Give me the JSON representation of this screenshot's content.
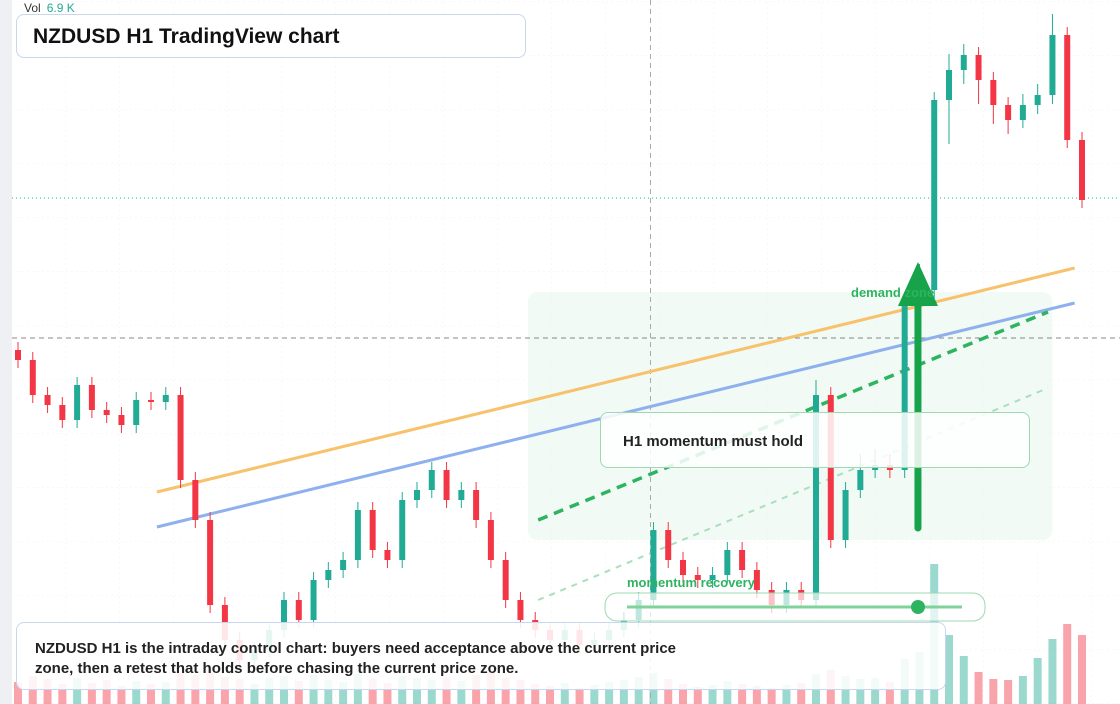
{
  "chart_data": {
    "type": "candlestick",
    "title": "NZDUSD H1 TradingView chart",
    "volume_label": "Vol",
    "volume_readout": "6.9 K",
    "up_color": "#22ab94",
    "down_color": "#f23645",
    "xlim": [
      0,
      72
    ],
    "ylim": [
      0,
      704
    ],
    "volume_lim": [
      0,
      16
    ],
    "candles": [
      [
        354,
        362,
        336,
        344
      ],
      [
        344,
        352,
        301,
        309
      ],
      [
        309,
        317,
        291,
        299
      ],
      [
        299,
        307,
        276,
        284
      ],
      [
        284,
        327,
        276,
        319
      ],
      [
        319,
        327,
        286,
        294
      ],
      [
        294,
        302,
        281,
        289
      ],
      [
        289,
        297,
        271,
        279
      ],
      [
        279,
        312,
        271,
        304
      ],
      [
        304,
        312,
        294,
        302
      ],
      [
        302,
        317,
        294,
        309
      ],
      [
        309,
        317,
        216,
        224
      ],
      [
        224,
        232,
        176,
        184
      ],
      [
        184,
        192,
        91,
        99
      ],
      [
        99,
        107,
        56,
        64
      ],
      [
        64,
        72,
        36,
        44
      ],
      [
        44,
        62,
        36,
        54
      ],
      [
        54,
        82,
        46,
        74
      ],
      [
        74,
        112,
        66,
        104
      ],
      [
        104,
        112,
        76,
        84
      ],
      [
        84,
        132,
        76,
        124
      ],
      [
        124,
        142,
        116,
        134
      ],
      [
        134,
        152,
        126,
        144
      ],
      [
        144,
        202,
        136,
        194
      ],
      [
        194,
        202,
        146,
        154
      ],
      [
        154,
        162,
        136,
        144
      ],
      [
        144,
        212,
        136,
        204
      ],
      [
        204,
        222,
        196,
        214
      ],
      [
        214,
        242,
        206,
        234
      ],
      [
        234,
        242,
        196,
        204
      ],
      [
        204,
        222,
        196,
        214
      ],
      [
        214,
        222,
        176,
        184
      ],
      [
        184,
        192,
        136,
        144
      ],
      [
        144,
        152,
        96,
        104
      ],
      [
        104,
        112,
        76,
        84
      ],
      [
        84,
        92,
        66,
        74
      ],
      [
        74,
        82,
        56,
        64
      ],
      [
        64,
        82,
        56,
        74
      ],
      [
        74,
        82,
        51,
        59
      ],
      [
        59,
        72,
        51,
        64
      ],
      [
        64,
        82,
        56,
        74
      ],
      [
        74,
        92,
        66,
        84
      ],
      [
        84,
        112,
        76,
        104
      ],
      [
        104,
        182,
        96,
        174
      ],
      [
        174,
        182,
        136,
        144
      ],
      [
        144,
        152,
        121,
        129
      ],
      [
        129,
        137,
        116,
        124
      ],
      [
        124,
        137,
        116,
        129
      ],
      [
        129,
        162,
        121,
        154
      ],
      [
        154,
        162,
        126,
        134
      ],
      [
        134,
        142,
        106,
        114
      ],
      [
        114,
        122,
        91,
        99
      ],
      [
        99,
        122,
        91,
        114
      ],
      [
        114,
        122,
        96,
        104
      ],
      [
        104,
        324,
        96,
        309
      ],
      [
        309,
        317,
        156,
        164
      ],
      [
        164,
        222,
        156,
        214
      ],
      [
        214,
        250,
        206,
        234
      ],
      [
        234,
        255,
        226,
        239
      ],
      [
        239,
        250,
        226,
        234
      ],
      [
        234,
        412,
        226,
        404
      ],
      [
        404,
        440,
        396,
        414
      ],
      [
        414,
        612,
        406,
        604
      ],
      [
        604,
        650,
        560,
        634
      ],
      [
        634,
        660,
        620,
        649
      ],
      [
        649,
        657,
        600,
        624
      ],
      [
        624,
        632,
        580,
        599
      ],
      [
        599,
        607,
        570,
        584
      ],
      [
        584,
        610,
        576,
        599
      ],
      [
        599,
        620,
        590,
        609
      ],
      [
        609,
        690,
        600,
        669
      ],
      [
        669,
        677,
        556,
        564
      ],
      [
        564,
        572,
        496,
        504
      ]
    ],
    "volumes": [
      2.2,
      2.8,
      2.5,
      2.0,
      2.6,
      2.1,
      2.4,
      1.8,
      2.3,
      2.0,
      2.2,
      3.1,
      2.9,
      3.4,
      2.7,
      2.5,
      2.0,
      2.6,
      2.8,
      2.3,
      2.9,
      2.4,
      2.2,
      3.0,
      2.5,
      2.1,
      2.8,
      2.6,
      2.4,
      2.7,
      2.3,
      2.9,
      3.2,
      2.6,
      2.4,
      2.0,
      1.8,
      2.1,
      1.6,
      1.9,
      2.2,
      2.4,
      2.7,
      3.1,
      2.5,
      2.0,
      1.7,
      1.9,
      2.3,
      2.0,
      1.8,
      1.6,
      1.9,
      2.1,
      3.0,
      3.4,
      2.8,
      2.5,
      2.6,
      2.2,
      4.5,
      5.2,
      14.0,
      6.9,
      4.8,
      3.2,
      2.5,
      2.4,
      2.8,
      4.6,
      6.5,
      8.0,
      6.9
    ],
    "trendlines": [
      {
        "color": "#f7c26b",
        "from": [
          9.4,
          212
        ],
        "to": [
          71.5,
          436
        ]
      },
      {
        "color": "#8fb0ee",
        "from": [
          9.4,
          177
        ],
        "to": [
          71.5,
          401
        ]
      }
    ],
    "dashed_lines": [
      {
        "color": "#2eb360",
        "from": [
          35.2,
          184
        ],
        "to": [
          69.7,
          392
        ]
      },
      {
        "color": "#a8e0bb",
        "from": [
          35.2,
          104
        ],
        "to": [
          69.7,
          316
        ]
      }
    ],
    "zone": {
      "from": [
        34.5,
        412
      ],
      "to": [
        70.0,
        164
      ]
    },
    "price_line": 506,
    "crosshair": {
      "x": 42.8,
      "y": 366
    },
    "arrow": {
      "color": "#16a34a",
      "from": [
        60.9,
        176
      ],
      "to": [
        60.9,
        442
      ]
    },
    "demand_label": "demand zone",
    "momentum_label": "momentum recovery",
    "callout": "H1 momentum must hold",
    "note": "NZDUSD H1 is the intraday control chart: buyers need acceptance above the current price zone, then a retest that holds before chasing the current price zone."
  }
}
